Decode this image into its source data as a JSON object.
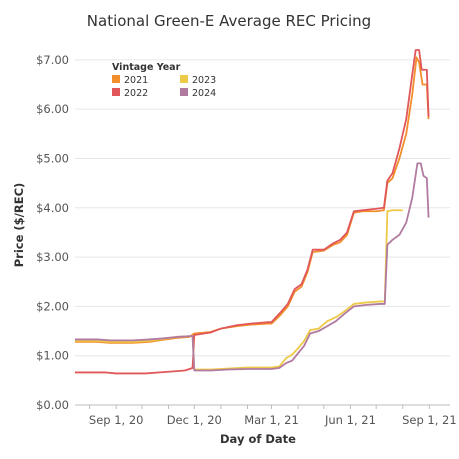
{
  "chart_data": {
    "type": "line",
    "title": "National Green-E Average REC Pricing",
    "xlabel": "Day of Date",
    "ylabel": "Price ($/REC)",
    "xlim": [
      "2020-07-15",
      "2021-09-25"
    ],
    "ylim": [
      0,
      7.2
    ],
    "yticks": [
      0,
      1,
      2,
      3,
      4,
      5,
      6,
      7
    ],
    "ytick_labels": [
      "$0.00",
      "$1.00",
      "$2.00",
      "$3.00",
      "$4.00",
      "$5.00",
      "$6.00",
      "$7.00"
    ],
    "xticks": [
      "2020-09-01",
      "2020-12-01",
      "2021-03-01",
      "2021-06-01",
      "2021-09-01"
    ],
    "xtick_labels": [
      "Sep 1, 20",
      "Dec 1, 20",
      "Mar 1, 21",
      "Jun 1, 21",
      "Sep 1, 21"
    ],
    "grid": "horizontal",
    "legend": {
      "title": "Vintage Year",
      "placement": "top-left",
      "items": [
        {
          "name": "2021",
          "color": "#F28E2B"
        },
        {
          "name": "2023",
          "color": "#EDC948"
        },
        {
          "name": "2022",
          "color": "#E15759"
        },
        {
          "name": "2024",
          "color": "#B07AA1"
        }
      ]
    },
    "series": [
      {
        "name": "2021",
        "color": "#F28E2B",
        "points": [
          [
            "2020-07-15",
            1.28
          ],
          [
            "2020-08-10",
            1.28
          ],
          [
            "2020-08-25",
            1.26
          ],
          [
            "2020-09-20",
            1.26
          ],
          [
            "2020-10-10",
            1.28
          ],
          [
            "2020-10-25",
            1.32
          ],
          [
            "2020-11-10",
            1.36
          ],
          [
            "2020-11-25",
            1.38
          ],
          [
            "2020-12-01",
            1.45
          ],
          [
            "2020-12-20",
            1.48
          ],
          [
            "2021-01-01",
            1.55
          ],
          [
            "2021-01-20",
            1.6
          ],
          [
            "2021-02-05",
            1.63
          ],
          [
            "2021-02-25",
            1.65
          ],
          [
            "2021-03-01",
            1.65
          ],
          [
            "2021-03-10",
            1.8
          ],
          [
            "2021-03-20",
            2.0
          ],
          [
            "2021-03-28",
            2.3
          ],
          [
            "2021-04-05",
            2.4
          ],
          [
            "2021-04-12",
            2.7
          ],
          [
            "2021-04-18",
            3.1
          ],
          [
            "2021-05-01",
            3.13
          ],
          [
            "2021-05-12",
            3.25
          ],
          [
            "2021-05-20",
            3.3
          ],
          [
            "2021-05-28",
            3.45
          ],
          [
            "2021-06-05",
            3.9
          ],
          [
            "2021-06-15",
            3.93
          ],
          [
            "2021-07-01",
            3.93
          ],
          [
            "2021-07-10",
            3.95
          ],
          [
            "2021-07-14",
            4.5
          ],
          [
            "2021-07-20",
            4.6
          ],
          [
            "2021-07-28",
            5.0
          ],
          [
            "2021-08-05",
            5.5
          ],
          [
            "2021-08-12",
            6.3
          ],
          [
            "2021-08-17",
            7.05
          ],
          [
            "2021-08-20",
            6.95
          ],
          [
            "2021-08-24",
            6.5
          ],
          [
            "2021-08-29",
            6.5
          ],
          [
            "2021-08-31",
            5.8
          ]
        ]
      },
      {
        "name": "2022",
        "color": "#E15759",
        "points": [
          [
            "2020-07-15",
            0.66
          ],
          [
            "2020-08-20",
            0.66
          ],
          [
            "2020-09-01",
            0.64
          ],
          [
            "2020-10-05",
            0.64
          ],
          [
            "2020-10-20",
            0.66
          ],
          [
            "2020-11-05",
            0.68
          ],
          [
            "2020-11-20",
            0.7
          ],
          [
            "2020-11-29",
            0.75
          ],
          [
            "2020-12-01",
            1.42
          ],
          [
            "2020-12-20",
            1.47
          ],
          [
            "2021-01-01",
            1.55
          ],
          [
            "2021-01-20",
            1.62
          ],
          [
            "2021-02-05",
            1.65
          ],
          [
            "2021-02-25",
            1.68
          ],
          [
            "2021-03-01",
            1.68
          ],
          [
            "2021-03-10",
            1.85
          ],
          [
            "2021-03-20",
            2.05
          ],
          [
            "2021-03-28",
            2.35
          ],
          [
            "2021-04-05",
            2.45
          ],
          [
            "2021-04-12",
            2.75
          ],
          [
            "2021-04-18",
            3.15
          ],
          [
            "2021-05-01",
            3.15
          ],
          [
            "2021-05-12",
            3.28
          ],
          [
            "2021-05-20",
            3.35
          ],
          [
            "2021-05-28",
            3.5
          ],
          [
            "2021-06-05",
            3.93
          ],
          [
            "2021-06-15",
            3.95
          ],
          [
            "2021-07-01",
            3.98
          ],
          [
            "2021-07-10",
            4.0
          ],
          [
            "2021-07-14",
            4.55
          ],
          [
            "2021-07-20",
            4.7
          ],
          [
            "2021-07-28",
            5.2
          ],
          [
            "2021-08-05",
            5.8
          ],
          [
            "2021-08-12",
            6.7
          ],
          [
            "2021-08-16",
            7.2
          ],
          [
            "2021-08-20",
            7.2
          ],
          [
            "2021-08-23",
            6.8
          ],
          [
            "2021-08-29",
            6.8
          ],
          [
            "2021-08-31",
            5.85
          ]
        ]
      },
      {
        "name": "2023",
        "color": "#EDC948",
        "points": [
          [
            "2020-07-15",
            1.3
          ],
          [
            "2020-08-10",
            1.3
          ],
          [
            "2020-08-25",
            1.28
          ],
          [
            "2020-09-20",
            1.28
          ],
          [
            "2020-10-10",
            1.3
          ],
          [
            "2020-10-25",
            1.34
          ],
          [
            "2020-11-10",
            1.38
          ],
          [
            "2020-11-29",
            1.4
          ],
          [
            "2020-12-01",
            0.72
          ],
          [
            "2020-12-20",
            0.72
          ],
          [
            "2021-01-10",
            0.74
          ],
          [
            "2021-02-01",
            0.76
          ],
          [
            "2021-03-01",
            0.76
          ],
          [
            "2021-03-10",
            0.78
          ],
          [
            "2021-03-18",
            0.95
          ],
          [
            "2021-03-25",
            1.02
          ],
          [
            "2021-04-01",
            1.15
          ],
          [
            "2021-04-08",
            1.3
          ],
          [
            "2021-04-15",
            1.52
          ],
          [
            "2021-04-25",
            1.55
          ],
          [
            "2021-05-05",
            1.7
          ],
          [
            "2021-05-15",
            1.78
          ],
          [
            "2021-05-25",
            1.9
          ],
          [
            "2021-06-05",
            2.05
          ],
          [
            "2021-06-20",
            2.08
          ],
          [
            "2021-07-05",
            2.1
          ],
          [
            "2021-07-11",
            2.1
          ],
          [
            "2021-07-14",
            3.93
          ],
          [
            "2021-07-20",
            3.95
          ],
          [
            "2021-08-01",
            3.95
          ]
        ]
      },
      {
        "name": "2024",
        "color": "#B07AA1",
        "points": [
          [
            "2020-07-15",
            1.33
          ],
          [
            "2020-08-10",
            1.33
          ],
          [
            "2020-08-25",
            1.31
          ],
          [
            "2020-09-20",
            1.31
          ],
          [
            "2020-10-10",
            1.33
          ],
          [
            "2020-10-25",
            1.35
          ],
          [
            "2020-11-10",
            1.38
          ],
          [
            "2020-11-29",
            1.4
          ],
          [
            "2020-12-01",
            0.7
          ],
          [
            "2020-12-20",
            0.7
          ],
          [
            "2021-01-10",
            0.72
          ],
          [
            "2021-02-01",
            0.73
          ],
          [
            "2021-03-01",
            0.73
          ],
          [
            "2021-03-10",
            0.75
          ],
          [
            "2021-03-18",
            0.85
          ],
          [
            "2021-03-25",
            0.9
          ],
          [
            "2021-04-01",
            1.05
          ],
          [
            "2021-04-08",
            1.2
          ],
          [
            "2021-04-15",
            1.45
          ],
          [
            "2021-04-25",
            1.5
          ],
          [
            "2021-05-05",
            1.6
          ],
          [
            "2021-05-15",
            1.7
          ],
          [
            "2021-05-25",
            1.85
          ],
          [
            "2021-06-05",
            2.0
          ],
          [
            "2021-06-20",
            2.03
          ],
          [
            "2021-07-05",
            2.05
          ],
          [
            "2021-07-11",
            2.05
          ],
          [
            "2021-07-14",
            3.25
          ],
          [
            "2021-07-20",
            3.35
          ],
          [
            "2021-07-28",
            3.45
          ],
          [
            "2021-08-05",
            3.7
          ],
          [
            "2021-08-12",
            4.2
          ],
          [
            "2021-08-18",
            4.9
          ],
          [
            "2021-08-22",
            4.9
          ],
          [
            "2021-08-25",
            4.65
          ],
          [
            "2021-08-29",
            4.6
          ],
          [
            "2021-08-31",
            3.8
          ]
        ]
      }
    ]
  }
}
